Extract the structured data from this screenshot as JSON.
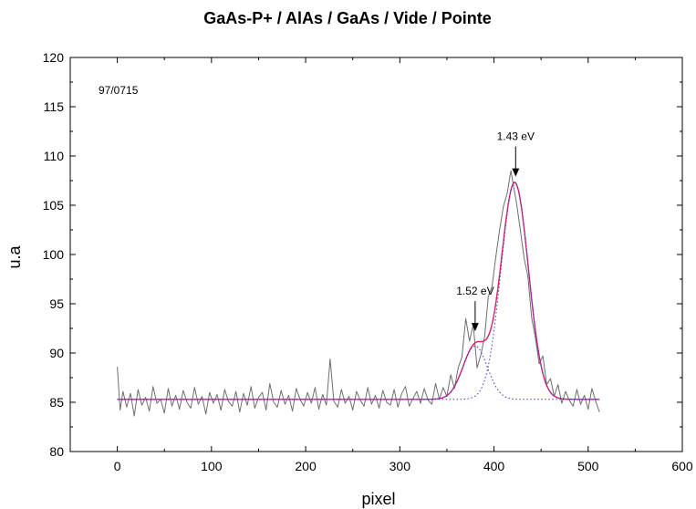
{
  "chart_data": {
    "type": "line",
    "title": "GaAs-P+ / AlAs / GaAs / Vide / Pointe",
    "xlabel": "pixel",
    "ylabel": "u.a",
    "xlim": [
      -50,
      600
    ],
    "ylim": [
      80,
      120
    ],
    "xticks": [
      0,
      100,
      200,
      300,
      400,
      500,
      600
    ],
    "yticks": [
      80,
      85,
      90,
      95,
      100,
      105,
      110,
      115,
      120
    ],
    "grid": false,
    "legend": "none",
    "sample_label": "97/0715",
    "annotations": [
      {
        "text": "1.43 eV",
        "x": 423,
        "y": 110.5
      },
      {
        "text": "1.52 eV",
        "x": 380,
        "y": 94.8
      }
    ],
    "series": [
      {
        "kind": "raw",
        "color": "#6e6e6e",
        "x": [
          0,
          3,
          6,
          10,
          14,
          18,
          22,
          26,
          30,
          34,
          38,
          42,
          46,
          50,
          54,
          58,
          62,
          66,
          70,
          74,
          78,
          82,
          86,
          90,
          94,
          98,
          102,
          106,
          110,
          114,
          118,
          122,
          126,
          130,
          134,
          138,
          142,
          146,
          150,
          154,
          158,
          162,
          166,
          170,
          174,
          178,
          182,
          186,
          190,
          194,
          198,
          202,
          206,
          210,
          214,
          218,
          222,
          226,
          230,
          234,
          238,
          242,
          246,
          250,
          254,
          258,
          262,
          266,
          270,
          274,
          278,
          282,
          286,
          290,
          294,
          298,
          302,
          306,
          310,
          314,
          318,
          322,
          326,
          330,
          334,
          338,
          342,
          346,
          350,
          354,
          358,
          362,
          366,
          370,
          374,
          378,
          382,
          386,
          390,
          394,
          398,
          402,
          406,
          410,
          414,
          418,
          421,
          424,
          428,
          432,
          436,
          440,
          444,
          448,
          452,
          456,
          460,
          464,
          468,
          472,
          476,
          480,
          484,
          488,
          492,
          496,
          500,
          504,
          508,
          512
        ],
        "y": [
          88.6,
          84.2,
          86.1,
          84.5,
          85.9,
          83.6,
          86.3,
          84.7,
          85.5,
          84.1,
          86.6,
          84.9,
          85.3,
          83.9,
          86.4,
          84.6,
          85.7,
          84.3,
          86.2,
          85.0,
          84.4,
          86.5,
          84.8,
          85.6,
          83.8,
          86.0,
          84.9,
          85.8,
          84.2,
          86.3,
          85.1,
          84.6,
          86.1,
          84.0,
          85.9,
          84.7,
          86.6,
          84.4,
          85.5,
          86.0,
          84.2,
          86.9,
          85.0,
          84.5,
          86.2,
          84.8,
          85.7,
          84.1,
          86.4,
          85.3,
          84.6,
          86.0,
          84.9,
          86.5,
          84.3,
          85.8,
          84.7,
          89.4,
          85.1,
          84.5,
          86.3,
          84.9,
          85.6,
          84.2,
          86.1,
          85.2,
          84.6,
          86.5,
          84.8,
          85.7,
          84.4,
          86.2,
          85.0,
          84.7,
          86.3,
          84.5,
          85.9,
          86.6,
          84.6,
          85.4,
          86.1,
          84.9,
          86.4,
          85.2,
          84.8,
          86.9,
          85.3,
          86.5,
          85.6,
          87.8,
          86.4,
          88.5,
          89.6,
          93.5,
          91.2,
          92.9,
          88.5,
          89.8,
          91.6,
          95.7,
          96.8,
          99.8,
          102.5,
          104.9,
          106.2,
          108.5,
          106.8,
          105.2,
          102.5,
          99.6,
          97.8,
          93.6,
          91.5,
          88.9,
          89.7,
          86.8,
          87.4,
          85.6,
          86.8,
          84.9,
          86.1,
          85.2,
          84.6,
          86.3,
          84.8,
          85.7,
          84.3,
          86.4,
          85.1,
          84.0
        ]
      },
      {
        "kind": "fit",
        "color": "#e0206a",
        "baseline": 85.3,
        "x_range": [
          0,
          512
        ],
        "peaks": [
          {
            "center": 422,
            "height": 22.0,
            "sigma": 14.5
          },
          {
            "center": 380,
            "height": 5.4,
            "sigma": 13.0
          }
        ]
      },
      {
        "kind": "component",
        "color": "#3a3ad8",
        "dashed": true,
        "baseline": 85.3,
        "x_range": [
          0,
          512
        ],
        "peaks": [
          {
            "center": 422,
            "height": 22.0,
            "sigma": 14.5
          }
        ]
      },
      {
        "kind": "component",
        "color": "#3a3ad8",
        "dashed": true,
        "baseline": 85.3,
        "x_range": [
          0,
          512
        ],
        "peaks": [
          {
            "center": 380,
            "height": 5.4,
            "sigma": 13.0
          }
        ]
      }
    ]
  }
}
